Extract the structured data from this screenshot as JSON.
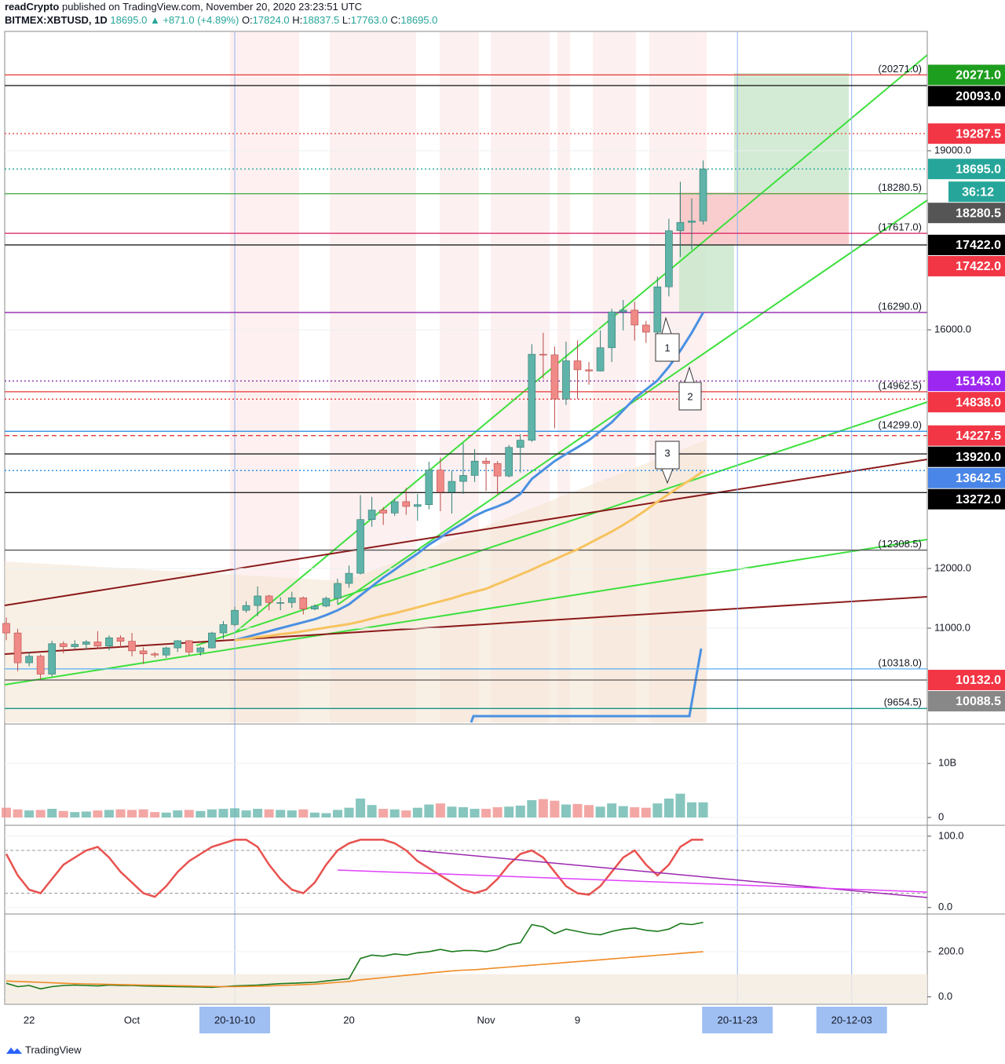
{
  "header": {
    "author": "readCrypto",
    "published": "published on TradingView.com, November 20, 2020 23:23:51 UTC",
    "symbol": "BITMEX:XBTUSD, 1D",
    "price": "18695.0",
    "change": "▲ +871.0 (+4.89%)",
    "ohlc": [
      {
        "key": "O:",
        "value": "17824.0"
      },
      {
        "key": "H:",
        "value": "18837.5"
      },
      {
        "key": "L:",
        "value": "17763.0"
      },
      {
        "key": "C:",
        "value": "18695.0"
      }
    ]
  },
  "footer": "TradingView",
  "chart_data": {
    "type": "candlestick",
    "categories": [
      null,
      null,
      "22",
      null,
      null,
      null,
      null,
      null,
      null,
      null,
      null,
      "Oct",
      null,
      null,
      null,
      null,
      null,
      null,
      null,
      null,
      "20-10-10",
      null,
      null,
      null,
      null,
      null,
      null,
      null,
      null,
      null,
      "20",
      null,
      null,
      null,
      null,
      null,
      null,
      null,
      null,
      null,
      null,
      null,
      "Nov",
      null,
      null,
      null,
      null,
      null,
      null,
      null,
      "9",
      null,
      null,
      null,
      null,
      null,
      null,
      null,
      null,
      null,
      null,
      null,
      null,
      null,
      "20-11-23",
      null,
      null,
      null,
      null,
      null,
      null,
      null,
      null,
      null,
      "20-12-03",
      null,
      null,
      null,
      null,
      null,
      null,
      null
    ],
    "open": [
      11080,
      10920,
      10420,
      10530,
      10230,
      10740,
      10690,
      10730,
      10770,
      10700,
      10840,
      10780,
      10620,
      10570,
      10550,
      10670,
      10790,
      10600,
      10670,
      10920,
      11060,
      11300,
      11380,
      11540,
      11430,
      11430,
      11510,
      11320,
      11370,
      11500,
      11750,
      11920,
      12820,
      12980,
      12930,
      13120,
      13040,
      13070,
      13650,
      13280,
      13460,
      13560,
      13800,
      13760,
      13550,
      14030,
      14150,
      15590,
      15580,
      14840,
      15480,
      15330,
      15310,
      15700,
      16300,
      16330,
      16080,
      15960,
      16720,
      17660,
      17800,
      17824,
      null,
      null,
      null,
      null,
      null,
      null,
      null,
      null,
      null,
      null,
      null,
      null,
      null,
      null,
      null,
      null,
      null,
      null,
      null,
      null
    ],
    "high": [
      11180,
      10990,
      10600,
      10560,
      10790,
      10780,
      10800,
      10800,
      10950,
      10880,
      10880,
      10920,
      10680,
      10600,
      10690,
      10800,
      10800,
      10690,
      10940,
      11120,
      11360,
      11450,
      11700,
      11560,
      11520,
      11610,
      11530,
      11400,
      11530,
      11830,
      12050,
      13230,
      13200,
      13030,
      13170,
      13350,
      13250,
      13790,
      13860,
      13640,
      14100,
      14000,
      13860,
      13800,
      14070,
      14250,
      15760,
      15950,
      15720,
      15800,
      15820,
      15460,
      15990,
      16350,
      16500,
      16470,
      16150,
      16890,
      17860,
      18480,
      18200,
      18837.5,
      null,
      null,
      null,
      null,
      null,
      null,
      null,
      null,
      null,
      null,
      null,
      null,
      null,
      null,
      null,
      null,
      null,
      null,
      null,
      null
    ],
    "low": [
      10800,
      10280,
      10360,
      10140,
      10190,
      10580,
      10650,
      10640,
      10650,
      10630,
      10680,
      10530,
      10400,
      10510,
      10500,
      10600,
      10550,
      10540,
      10660,
      10820,
      11030,
      11260,
      11200,
      11300,
      11300,
      11340,
      11230,
      11300,
      11350,
      11400,
      11680,
      11900,
      12700,
      12730,
      12880,
      12900,
      12800,
      12990,
      12960,
      12920,
      13250,
      13450,
      13300,
      13240,
      13530,
      13610,
      14120,
      15180,
      14350,
      14740,
      14840,
      15080,
      15300,
      15460,
      15990,
      15820,
      15780,
      15890,
      16560,
      17220,
      17340,
      17763,
      null,
      null,
      null,
      null,
      null,
      null,
      null,
      null,
      null,
      null,
      null,
      null,
      null,
      null,
      null,
      null,
      null,
      null,
      null,
      null
    ],
    "close": [
      10920,
      10420,
      10530,
      10230,
      10740,
      10690,
      10730,
      10770,
      10700,
      10840,
      10780,
      10620,
      10570,
      10550,
      10670,
      10790,
      10600,
      10670,
      10920,
      11060,
      11300,
      11380,
      11540,
      11430,
      11430,
      11510,
      11320,
      11370,
      11500,
      11750,
      11920,
      12820,
      12980,
      12930,
      13120,
      13040,
      13070,
      13650,
      13280,
      13460,
      13560,
      13800,
      13760,
      13550,
      14030,
      14150,
      15590,
      15580,
      14840,
      15480,
      15330,
      15310,
      15700,
      16300,
      16330,
      16080,
      15960,
      16720,
      17660,
      17800,
      17824,
      18695,
      null,
      null,
      null,
      null,
      null,
      null,
      null,
      null,
      null,
      null,
      null,
      null,
      null,
      null,
      null,
      null,
      null,
      null,
      null,
      null
    ],
    "up_color": "#5fb3a8",
    "down_color": "#ef8a87",
    "ma_lines": [
      {
        "color": "#4a90e2",
        "values": [
          null,
          null,
          null,
          null,
          null,
          null,
          null,
          null,
          null,
          null,
          null,
          null,
          null,
          null,
          null,
          null,
          null,
          null,
          null,
          null,
          10800,
          10850,
          10900,
          10950,
          11000,
          11050,
          11100,
          11150,
          11220,
          11300,
          11400,
          11550,
          11700,
          11850,
          11980,
          12120,
          12250,
          12400,
          12520,
          12650,
          12760,
          12880,
          12970,
          13040,
          13120,
          13250,
          13500,
          13650,
          13800,
          13920,
          14030,
          14150,
          14300,
          14450,
          14650,
          14850,
          15000,
          15150,
          15380,
          15650,
          15950,
          16290,
          null,
          null,
          null,
          null,
          null,
          null,
          null,
          null,
          null,
          null,
          null,
          null,
          null,
          null,
          null,
          null,
          null,
          null,
          null,
          null
        ]
      },
      {
        "color": "#f7c35f",
        "values": [
          null,
          null,
          null,
          null,
          null,
          null,
          null,
          null,
          null,
          null,
          null,
          null,
          null,
          null,
          null,
          null,
          null,
          null,
          null,
          null,
          10800,
          10820,
          10850,
          10870,
          10900,
          10920,
          10950,
          10980,
          11010,
          11040,
          11070,
          11110,
          11160,
          11210,
          11250,
          11300,
          11350,
          11400,
          11450,
          11500,
          11560,
          11610,
          11660,
          11740,
          11820,
          11900,
          11980,
          12070,
          12150,
          12240,
          12320,
          12420,
          12520,
          12620,
          12730,
          12850,
          12980,
          13120,
          13250,
          13380,
          13500,
          13630,
          null,
          null,
          null,
          null,
          null,
          null,
          null,
          null,
          null,
          null,
          null,
          null,
          null,
          null,
          null,
          null,
          null,
          null,
          null,
          null
        ]
      }
    ],
    "ylim": [
      9421,
      21000
    ],
    "yticks": [
      {
        "value": 19000,
        "label": "19000.0"
      },
      {
        "value": 16000,
        "label": "16000.0"
      },
      {
        "value": 12000,
        "label": "12000.0"
      },
      {
        "value": 11000,
        "label": "11000.0"
      }
    ],
    "level_lines": [
      {
        "value": 20271,
        "color": "#e53935",
        "dash": "solid",
        "label": "(20271.0)"
      },
      {
        "value": 20093,
        "color": "#222222",
        "dash": "solid"
      },
      {
        "value": 19287.5,
        "color": "#e53935",
        "dash": "dotted"
      },
      {
        "value": 18695,
        "color": "#26a69a",
        "dash": "dotted"
      },
      {
        "value": 18280.5,
        "color": "#4caf50",
        "dash": "solid",
        "label": "(18280.5)"
      },
      {
        "value": 17617,
        "color": "#d81b60",
        "dash": "solid",
        "label": "(17617.0)"
      },
      {
        "value": 17422,
        "color": "#222222",
        "dash": "solid"
      },
      {
        "value": 16290,
        "color": "#8e24aa",
        "dash": "solid",
        "label": "(16290.0)"
      },
      {
        "value": 15143,
        "color": "#7b1fa2",
        "dash": "dotted"
      },
      {
        "value": 14962.5,
        "color": "#e53935",
        "dash": "solid",
        "label": "(14962.5)"
      },
      {
        "value": 14838,
        "color": "#e53935",
        "dash": "dotted"
      },
      {
        "value": 14299,
        "color": "#1e88e5",
        "dash": "solid",
        "label": "(14299.0)"
      },
      {
        "value": 14227.5,
        "color": "#e53935",
        "dash": "dashed"
      },
      {
        "value": 13920,
        "color": "#222222",
        "dash": "solid"
      },
      {
        "value": 13642.5,
        "color": "#1e88e5",
        "dash": "dotted"
      },
      {
        "value": 13272,
        "color": "#222222",
        "dash": "solid"
      },
      {
        "value": 12308.5,
        "color": "#555555",
        "dash": "solid",
        "label": "(12308.5)"
      },
      {
        "value": 10318,
        "color": "#64b5f6",
        "dash": "solid",
        "label": "(10318.0)"
      },
      {
        "value": 10132,
        "color": "#555555",
        "dash": "solid"
      },
      {
        "value": 9654.5,
        "color": "#00897b",
        "dash": "solid",
        "label": "(9654.5)"
      }
    ],
    "price_tags": [
      {
        "value": 20271,
        "label": "20271.0",
        "color": "#1e9e1e"
      },
      {
        "value": 20093,
        "label": "20093.0",
        "color": "#000000"
      },
      {
        "value": 19287.5,
        "label": "19287.5",
        "color": "#f23645"
      },
      {
        "value": 18695,
        "label": "18695.0",
        "color": "#26a69a"
      },
      {
        "value": 18280.5,
        "label": "18280.5",
        "color": "#555555"
      },
      {
        "value": 17422,
        "label": "17422.0",
        "color": "#000000"
      },
      {
        "value": 17422,
        "label": "17422.0",
        "color": "#f23645"
      },
      {
        "value": 15143,
        "label": "15143.0",
        "color": "#9c27f0"
      },
      {
        "value": 14838,
        "label": "14838.0",
        "color": "#f23645"
      },
      {
        "value": 14227.5,
        "label": "14227.5",
        "color": "#f23645"
      },
      {
        "value": 13920,
        "label": "13920.0",
        "color": "#000000"
      },
      {
        "value": 13642.5,
        "label": "13642.5",
        "color": "#4a86e8"
      },
      {
        "value": 13272,
        "label": "13272.0",
        "color": "#000000"
      },
      {
        "value": 10132,
        "label": "10132.0",
        "color": "#f23645"
      },
      {
        "value": 10088.5,
        "label": "10088.5",
        "color": "#888888"
      }
    ],
    "countdown": "36:12",
    "annotations": [
      "1",
      "2",
      "3"
    ],
    "volume": {
      "values": [
        1.8,
        1.5,
        1.3,
        1.4,
        1.6,
        1.2,
        1.0,
        1.1,
        1.3,
        1.4,
        1.5,
        1.4,
        1.5,
        1.0,
        0.9,
        1.3,
        1.4,
        1.2,
        1.5,
        1.6,
        1.7,
        1.3,
        1.6,
        1.5,
        1.4,
        1.3,
        1.5,
        0.9,
        0.8,
        1.4,
        1.8,
        3.5,
        2.3,
        1.6,
        1.5,
        1.3,
        1.8,
        2.4,
        2.6,
        2.0,
        1.9,
        1.6,
        1.6,
        1.9,
        2.0,
        2.2,
        3.2,
        3.4,
        3.1,
        2.4,
        2.5,
        2.3,
        2.0,
        2.6,
        2.1,
        1.9,
        1.8,
        2.6,
        3.5,
        4.4,
        2.8,
        2.8,
        null,
        null,
        null,
        null,
        null,
        null,
        null,
        null,
        null,
        null,
        null,
        null,
        null,
        null,
        null,
        null,
        null,
        null,
        null,
        null
      ],
      "ylim": [
        -1.3,
        17
      ],
      "yticks": [
        {
          "value": 10,
          "label": "10B"
        },
        0
      ]
    },
    "oscillator": {
      "color": "#e8524f",
      "values": [
        75,
        45,
        25,
        20,
        40,
        60,
        70,
        80,
        85,
        70,
        50,
        35,
        20,
        15,
        30,
        50,
        65,
        75,
        85,
        90,
        95,
        95,
        85,
        60,
        40,
        25,
        20,
        35,
        60,
        80,
        90,
        95,
        95,
        95,
        90,
        80,
        65,
        55,
        45,
        35,
        25,
        20,
        25,
        40,
        60,
        75,
        80,
        70,
        50,
        30,
        20,
        18,
        30,
        50,
        70,
        80,
        60,
        45,
        60,
        85,
        95,
        95,
        null,
        null,
        null,
        null,
        null,
        null,
        null,
        null,
        null,
        null,
        null,
        null,
        null,
        null,
        null,
        null,
        null,
        null,
        null,
        null
      ],
      "bands": [
        80,
        20
      ],
      "ylim": [
        -8,
        113
      ],
      "yticks": [
        {
          "value": 100,
          "label": "100.0"
        },
        {
          "value": 0,
          "label": "0.0"
        }
      ]
    },
    "momentum": {
      "series": [
        {
          "color": "#1b7a1b",
          "values": [
            60,
            45,
            50,
            35,
            45,
            50,
            52,
            50,
            48,
            52,
            50,
            50,
            48,
            47,
            46,
            45,
            44,
            43,
            42,
            45,
            48,
            50,
            52,
            55,
            58,
            60,
            62,
            64,
            70,
            75,
            80,
            170,
            185,
            180,
            190,
            185,
            195,
            200,
            210,
            200,
            205,
            205,
            200,
            210,
            230,
            240,
            320,
            310,
            280,
            300,
            290,
            280,
            275,
            290,
            300,
            305,
            295,
            290,
            300,
            325,
            320,
            330,
            null,
            null,
            null,
            null,
            null,
            null,
            null,
            null,
            null,
            null,
            null,
            null,
            null,
            null,
            null,
            null,
            null,
            null,
            null,
            null
          ]
        },
        {
          "color": "#f08a24",
          "values": [
            70,
            68,
            66,
            64,
            62,
            60,
            58,
            57,
            56,
            55,
            54,
            53,
            52,
            51,
            50,
            49,
            48,
            47,
            46,
            45,
            45,
            46,
            47,
            48,
            50,
            52,
            54,
            56,
            60,
            64,
            68,
            75,
            80,
            85,
            90,
            95,
            100,
            105,
            110,
            115,
            118,
            120,
            124,
            128,
            132,
            136,
            140,
            144,
            148,
            152,
            156,
            160,
            164,
            168,
            172,
            176,
            180,
            184,
            188,
            192,
            196,
            200,
            null,
            null,
            null,
            null,
            null,
            null,
            null,
            null,
            null,
            null,
            null,
            null,
            null,
            null,
            null,
            null,
            null,
            null,
            null,
            null
          ]
        }
      ],
      "ylim": [
        -30,
        360
      ],
      "yticks": [
        {
          "value": 200,
          "label": "200.0"
        },
        {
          "value": 0,
          "label": "0.0"
        }
      ]
    }
  }
}
